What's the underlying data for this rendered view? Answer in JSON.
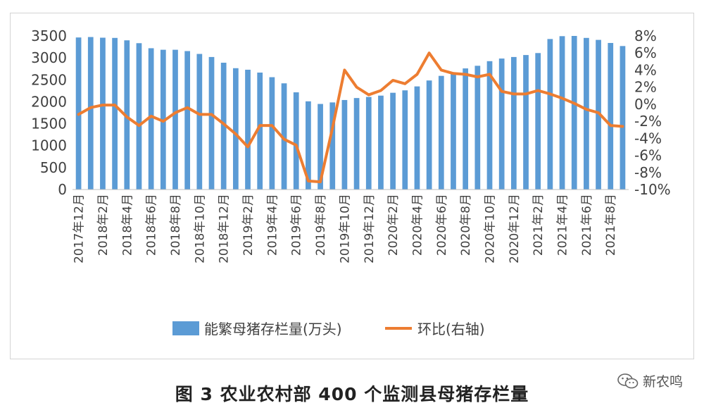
{
  "chart_data": {
    "type": "bar+line",
    "categories": [
      "2017年12月",
      "2018年1月",
      "2018年2月",
      "2018年3月",
      "2018年4月",
      "2018年5月",
      "2018年6月",
      "2018年7月",
      "2018年8月",
      "2018年9月",
      "2018年10月",
      "2018年11月",
      "2018年12月",
      "2019年1月",
      "2019年2月",
      "2019年3月",
      "2019年4月",
      "2019年5月",
      "2019年6月",
      "2019年7月",
      "2019年8月",
      "2019年9月",
      "2019年10月",
      "2019年11月",
      "2019年12月",
      "2020年1月",
      "2020年2月",
      "2020年3月",
      "2020年4月",
      "2020年5月",
      "2020年6月",
      "2020年7月",
      "2020年8月",
      "2020年9月",
      "2020年10月",
      "2020年11月",
      "2020年12月",
      "2021年1月",
      "2021年2月",
      "2021年3月",
      "2021年4月",
      "2021年5月",
      "2021年6月",
      "2021年7月",
      "2021年8月",
      "2021年9月"
    ],
    "x_tick_labels": [
      "2017年12月",
      "2018年2月",
      "2018年4月",
      "2018年6月",
      "2018年8月",
      "2018年10月",
      "2018年12月",
      "2019年2月",
      "2019年4月",
      "2019年6月",
      "2019年8月",
      "2019年10月",
      "2019年12月",
      "2020年2月",
      "2020年4月",
      "2020年6月",
      "2020年8月",
      "2020年10月",
      "2020年12月",
      "2021年2月",
      "2021年4月",
      "2021年6月",
      "2021年8月"
    ],
    "series": [
      {
        "name": "能繁母猪存栏量(万头)",
        "type": "bar",
        "axis": "left",
        "color": "#5b9bd5",
        "values": [
          3465,
          3475,
          3460,
          3455,
          3400,
          3335,
          3220,
          3185,
          3185,
          3155,
          3090,
          3020,
          2890,
          2765,
          2730,
          2665,
          2560,
          2420,
          2215,
          2010,
          1950,
          1985,
          2040,
          2085,
          2110,
          2140,
          2205,
          2260,
          2350,
          2485,
          2590,
          2670,
          2760,
          2820,
          2925,
          2985,
          3020,
          3065,
          3110,
          3430,
          3495,
          3500,
          3455,
          3410,
          3340,
          3270
        ]
      },
      {
        "name": "环比(右轴)",
        "type": "line",
        "axis": "right",
        "color": "#ed7d31",
        "values": [
          -1.2,
          -0.4,
          -0.1,
          -0.1,
          -1.5,
          -2.5,
          -1.4,
          -2.0,
          -1.0,
          -0.4,
          -1.2,
          -1.2,
          -2.3,
          -3.5,
          -5.0,
          -2.5,
          -2.5,
          -4.1,
          -4.8,
          -9.0,
          -9.1,
          -2.8,
          4.0,
          2.0,
          1.1,
          1.6,
          2.8,
          2.4,
          3.5,
          6.0,
          4.0,
          3.6,
          3.5,
          3.2,
          3.5,
          1.5,
          1.2,
          1.2,
          1.6,
          1.2,
          0.7,
          0.1,
          -0.6,
          -1.0,
          -2.5,
          -2.6
        ]
      }
    ],
    "left_axis": {
      "ylim": [
        0,
        3500
      ],
      "ticks": [
        "0",
        "500",
        "1000",
        "1500",
        "2000",
        "2500",
        "3000",
        "3500"
      ]
    },
    "right_axis": {
      "ylim": [
        -10,
        8
      ],
      "ticks": [
        "-10%",
        "-8%",
        "-6%",
        "-4%",
        "-2%",
        "0%",
        "2%",
        "4%",
        "6%",
        "8%"
      ]
    },
    "legend": {
      "position": "bottom",
      "bar_label": "能繁母猪存栏量(万头)",
      "line_label": "环比(右轴)"
    },
    "grid": false
  },
  "caption": "图 3  农业农村部 400 个监测县母猪存栏量",
  "watermark": {
    "text": "新农鸣",
    "icon": "wechat-icon"
  }
}
